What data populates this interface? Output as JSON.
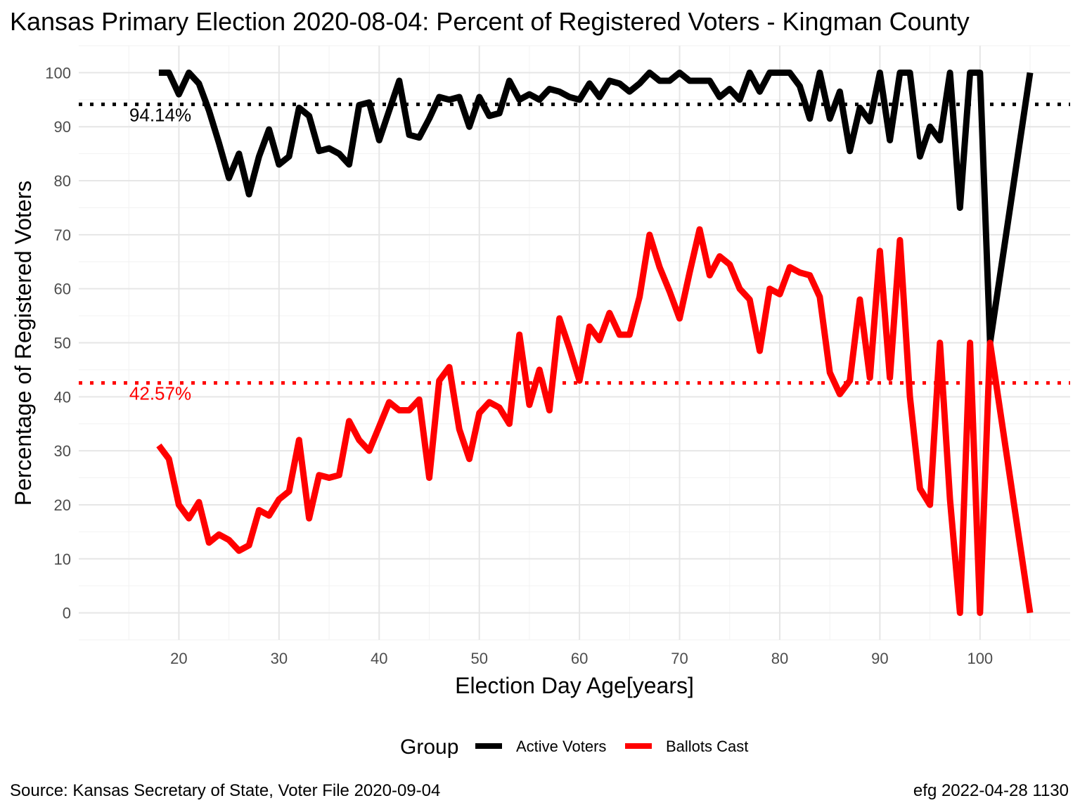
{
  "chart_data": {
    "type": "line",
    "title": "Kansas Primary Election 2020-08-04:  Percent of Registered Voters - Kingman County",
    "xlabel": "Election Day Age[years]",
    "ylabel": "Percentage of Registered Voters",
    "xlim": [
      10,
      109
    ],
    "ylim": [
      -5,
      105
    ],
    "x_ticks": [
      20,
      30,
      40,
      50,
      60,
      70,
      80,
      90,
      100
    ],
    "y_ticks": [
      0,
      10,
      20,
      30,
      40,
      50,
      60,
      70,
      80,
      90,
      100
    ],
    "grid": true,
    "legend": {
      "title": "Group",
      "placement": "bottom"
    },
    "reference_lines": [
      {
        "value": 94.14,
        "label": "94.14%",
        "color": "#000000"
      },
      {
        "value": 42.57,
        "label": "42.57%",
        "color": "#ff0000"
      }
    ],
    "series": [
      {
        "name": "Active Voters",
        "color": "#000000",
        "x": [
          18,
          19,
          20,
          21,
          22,
          23,
          24,
          25,
          26,
          27,
          28,
          29,
          30,
          31,
          32,
          33,
          34,
          35,
          36,
          37,
          38,
          39,
          40,
          41,
          42,
          43,
          44,
          45,
          46,
          47,
          48,
          49,
          50,
          51,
          52,
          53,
          54,
          55,
          56,
          57,
          58,
          59,
          60,
          61,
          62,
          63,
          64,
          65,
          66,
          67,
          68,
          69,
          70,
          71,
          72,
          73,
          74,
          75,
          76,
          77,
          78,
          79,
          80,
          81,
          82,
          83,
          84,
          85,
          86,
          87,
          88,
          89,
          90,
          91,
          92,
          93,
          94,
          95,
          96,
          97,
          98,
          99,
          100,
          101,
          105
        ],
        "y": [
          100,
          100,
          96,
          100,
          98,
          93,
          87,
          80.5,
          85,
          77.5,
          84.5,
          89.5,
          83,
          84.5,
          93.5,
          92,
          85.5,
          86,
          85,
          83,
          94,
          94.5,
          87.5,
          93,
          98.5,
          88.5,
          88,
          91.5,
          95.5,
          95,
          95.5,
          90,
          95.5,
          92,
          92.5,
          98.5,
          95,
          96,
          95,
          97,
          96.5,
          95.5,
          95,
          98,
          95.5,
          98.5,
          98,
          96.5,
          98,
          100,
          98.5,
          98.5,
          100,
          98.5,
          98.5,
          98.5,
          95.5,
          97,
          95,
          100,
          96.5,
          100,
          100,
          100,
          97.5,
          91.5,
          100,
          91.5,
          96.5,
          85.5,
          93.5,
          91,
          100,
          87.5,
          100,
          100,
          84.5,
          90,
          87.5,
          100,
          75,
          100,
          100,
          50,
          100
        ]
      },
      {
        "name": "Ballots Cast",
        "color": "#ff0000",
        "x": [
          18,
          19,
          20,
          21,
          22,
          23,
          24,
          25,
          26,
          27,
          28,
          29,
          30,
          31,
          32,
          33,
          34,
          35,
          36,
          37,
          38,
          39,
          40,
          41,
          42,
          43,
          44,
          45,
          46,
          47,
          48,
          49,
          50,
          51,
          52,
          53,
          54,
          55,
          56,
          57,
          58,
          59,
          60,
          61,
          62,
          63,
          64,
          65,
          66,
          67,
          68,
          69,
          70,
          71,
          72,
          73,
          74,
          75,
          76,
          77,
          78,
          79,
          80,
          81,
          82,
          83,
          84,
          85,
          86,
          87,
          88,
          89,
          90,
          91,
          92,
          93,
          94,
          95,
          96,
          97,
          98,
          99,
          100,
          101,
          105
        ],
        "y": [
          31,
          28.5,
          20,
          17.5,
          20.5,
          13,
          14.5,
          13.5,
          11.5,
          12.5,
          19,
          18,
          21,
          22.5,
          32,
          17.5,
          25.5,
          25,
          25.5,
          35.5,
          32,
          30,
          34.5,
          39,
          37.5,
          37.5,
          39.5,
          25,
          43,
          45.5,
          34,
          28.5,
          37,
          39,
          38,
          35,
          51.5,
          38.5,
          45,
          37.5,
          54.5,
          49,
          43,
          53,
          50.5,
          55.5,
          51.5,
          51.5,
          58.5,
          70,
          64,
          59.5,
          54.5,
          63,
          71,
          62.5,
          66,
          64.5,
          60,
          58,
          48.5,
          60,
          59,
          64,
          63,
          62.5,
          58.5,
          44.5,
          40.5,
          43,
          58,
          43.5,
          67,
          43.5,
          69,
          40,
          23,
          20,
          50,
          21,
          0,
          50,
          0,
          50,
          0
        ]
      }
    ]
  },
  "caption": {
    "source": "Source:  Kansas Secretary of State, Voter File  2020-09-04",
    "credit": "efg 2022-04-28 1130"
  }
}
